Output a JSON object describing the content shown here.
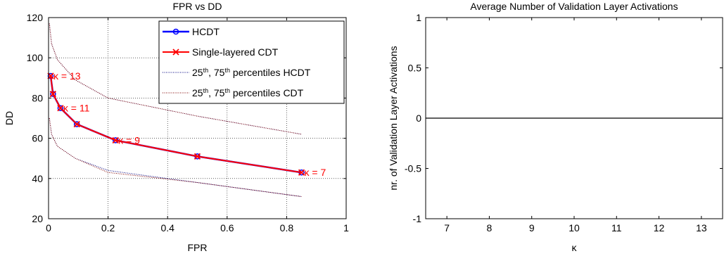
{
  "chart_data": [
    {
      "type": "line",
      "title": "FPR vs DD",
      "xlabel": "FPR",
      "ylabel": "DD",
      "xlim": [
        0,
        1
      ],
      "ylim": [
        20,
        120
      ],
      "xticks": [
        "0",
        "0.2",
        "0.4",
        "0.6",
        "0.8",
        "1"
      ],
      "yticks": [
        "20",
        "40",
        "60",
        "80",
        "100",
        "120"
      ],
      "grid": true,
      "legend_position": "top-right",
      "legend": [
        {
          "label": "HCDT"
        },
        {
          "label": "Single-layered CDT"
        },
        {
          "label_parts": [
            "25",
            "th",
            ", 75",
            "th",
            " percentiles HCDT"
          ]
        },
        {
          "label_parts": [
            "25",
            "th",
            ", 75",
            "th",
            " percentiles CDT"
          ]
        }
      ],
      "series": [
        {
          "name": "HCDT",
          "color": "#0000ff",
          "marker": "circle",
          "x": [
            0.85,
            0.5,
            0.225,
            0.095,
            0.04,
            0.015,
            0.007
          ],
          "y": [
            43,
            51,
            59,
            67,
            75,
            82,
            91
          ]
        },
        {
          "name": "Single-layered CDT",
          "color": "#ff0000",
          "marker": "x",
          "x": [
            0.85,
            0.5,
            0.225,
            0.095,
            0.04,
            0.015,
            0.007
          ],
          "y": [
            43,
            51,
            59,
            67,
            75,
            82,
            91
          ]
        },
        {
          "name": "25th, 75th percentiles HCDT",
          "color": "#000080",
          "style": "dotted",
          "lower": {
            "x": [
              0.003,
              0.01,
              0.03,
              0.09,
              0.2,
              0.5,
              0.85
            ],
            "y": [
              70,
              62,
              56,
              50,
              44,
              38,
              31
            ]
          },
          "upper": {
            "x": [
              0.003,
              0.01,
              0.03,
              0.09,
              0.2,
              0.5,
              0.85
            ],
            "y": [
              117,
              107,
              99,
              89,
              80,
              71,
              62
            ]
          }
        },
        {
          "name": "25th, 75th percentiles CDT",
          "color": "#800000",
          "style": "dotted",
          "lower": {
            "x": [
              0.003,
              0.01,
              0.03,
              0.09,
              0.2,
              0.5,
              0.85
            ],
            "y": [
              70,
              62,
              56,
              50,
              43,
              38,
              31
            ]
          },
          "upper": {
            "x": [
              0.003,
              0.01,
              0.03,
              0.09,
              0.2,
              0.5,
              0.85
            ],
            "y": [
              117,
              107,
              99,
              89,
              80,
              71,
              62
            ]
          }
        }
      ],
      "annotations": [
        {
          "text": "κ = 13",
          "x": 0.007,
          "y": 91
        },
        {
          "text": "κ = 11",
          "x": 0.04,
          "y": 75
        },
        {
          "text": "κ = 9",
          "x": 0.225,
          "y": 59
        },
        {
          "text": "κ = 7",
          "x": 0.85,
          "y": 43
        }
      ]
    },
    {
      "type": "line",
      "title": "Average Number of Validation Layer Activations",
      "xlabel": "κ",
      "ylabel": "nr. of Validation Layer Activations",
      "xlim": [
        6.5,
        13.5
      ],
      "ylim": [
        -1,
        1
      ],
      "xticks": [
        "7",
        "8",
        "9",
        "10",
        "11",
        "12",
        "13"
      ],
      "yticks": [
        "-1",
        "-0.5",
        "0",
        "0.5",
        "1"
      ],
      "grid": false,
      "series": [
        {
          "color": "#000000",
          "x": [
            6.5,
            13.5
          ],
          "y": [
            0,
            0
          ]
        }
      ]
    }
  ]
}
